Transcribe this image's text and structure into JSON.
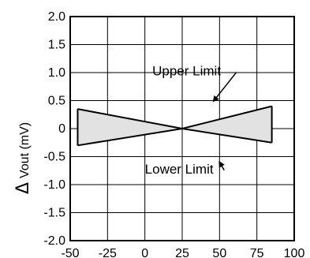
{
  "chart_data": {
    "type": "area",
    "ylabel_symbol": "Δ",
    "ylabel_text": "Vout (mV)",
    "xlim": [
      -50,
      100
    ],
    "ylim": [
      -2.0,
      2.0
    ],
    "x_ticks": [
      -50,
      -25,
      0,
      25,
      50,
      75,
      100
    ],
    "x_tick_labels": [
      "-50",
      "-25",
      "0",
      "25",
      "50",
      "75",
      "100"
    ],
    "y_ticks": [
      2.0,
      1.5,
      1.0,
      0.5,
      0,
      -0.5,
      -1.0,
      -1.5,
      -2.0
    ],
    "y_tick_labels": [
      "2.0",
      "1.5",
      "1.0",
      "0.5",
      "0",
      "-0.5",
      "-1.0",
      "-1.5",
      "-2.0"
    ],
    "grid": true,
    "fill_color": "#e2e2e2",
    "series": [
      {
        "name": "Upper Limit",
        "x": [
          -45,
          25,
          85
        ],
        "y": [
          0.35,
          0.0,
          0.4
        ]
      },
      {
        "name": "Lower Limit",
        "x": [
          -45,
          25,
          85
        ],
        "y": [
          -0.3,
          0.0,
          -0.25
        ]
      }
    ],
    "annotations": [
      {
        "text": "Upper Limit",
        "x": 5,
        "y": 0.95,
        "arrow_to": [
          45,
          0.55
        ]
      },
      {
        "text": "Lower Limit",
        "x": 0,
        "y": -0.8,
        "arrow_to": [
          50,
          -0.6
        ]
      }
    ]
  }
}
